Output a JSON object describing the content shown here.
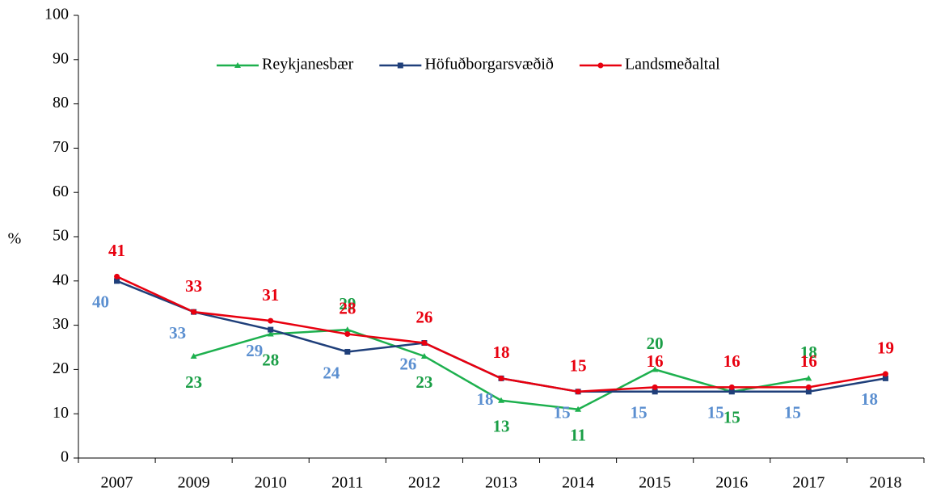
{
  "chart_data": {
    "type": "line",
    "y_label": "%",
    "categories": [
      "2007",
      "2009",
      "2010",
      "2011",
      "2012",
      "2013",
      "2014",
      "2015",
      "2016",
      "2017",
      "2018"
    ],
    "series": [
      {
        "name": "Reykjanesbær",
        "color": "#1db04e",
        "label_color": "#1a9e46",
        "marker": "triangle",
        "values": [
          null,
          23,
          28,
          29,
          23,
          13,
          11,
          20,
          15,
          18,
          null
        ]
      },
      {
        "name": "Höfuðborgarsvæðið",
        "color": "#1f3f7a",
        "label_color": "#5b8fd0",
        "marker": "square",
        "values": [
          40,
          33,
          29,
          24,
          26,
          18,
          15,
          15,
          15,
          15,
          18
        ]
      },
      {
        "name": "Landsmeðaltal",
        "color": "#e8000f",
        "label_color": "#e8000f",
        "marker": "circle",
        "values": [
          41,
          33,
          31,
          28,
          26,
          18,
          15,
          16,
          16,
          16,
          19
        ]
      }
    ],
    "ylim": [
      0,
      100
    ],
    "yticks": [
      0,
      10,
      20,
      30,
      40,
      50,
      60,
      70,
      80,
      90,
      100
    ],
    "legend": "top",
    "grid": false
  }
}
